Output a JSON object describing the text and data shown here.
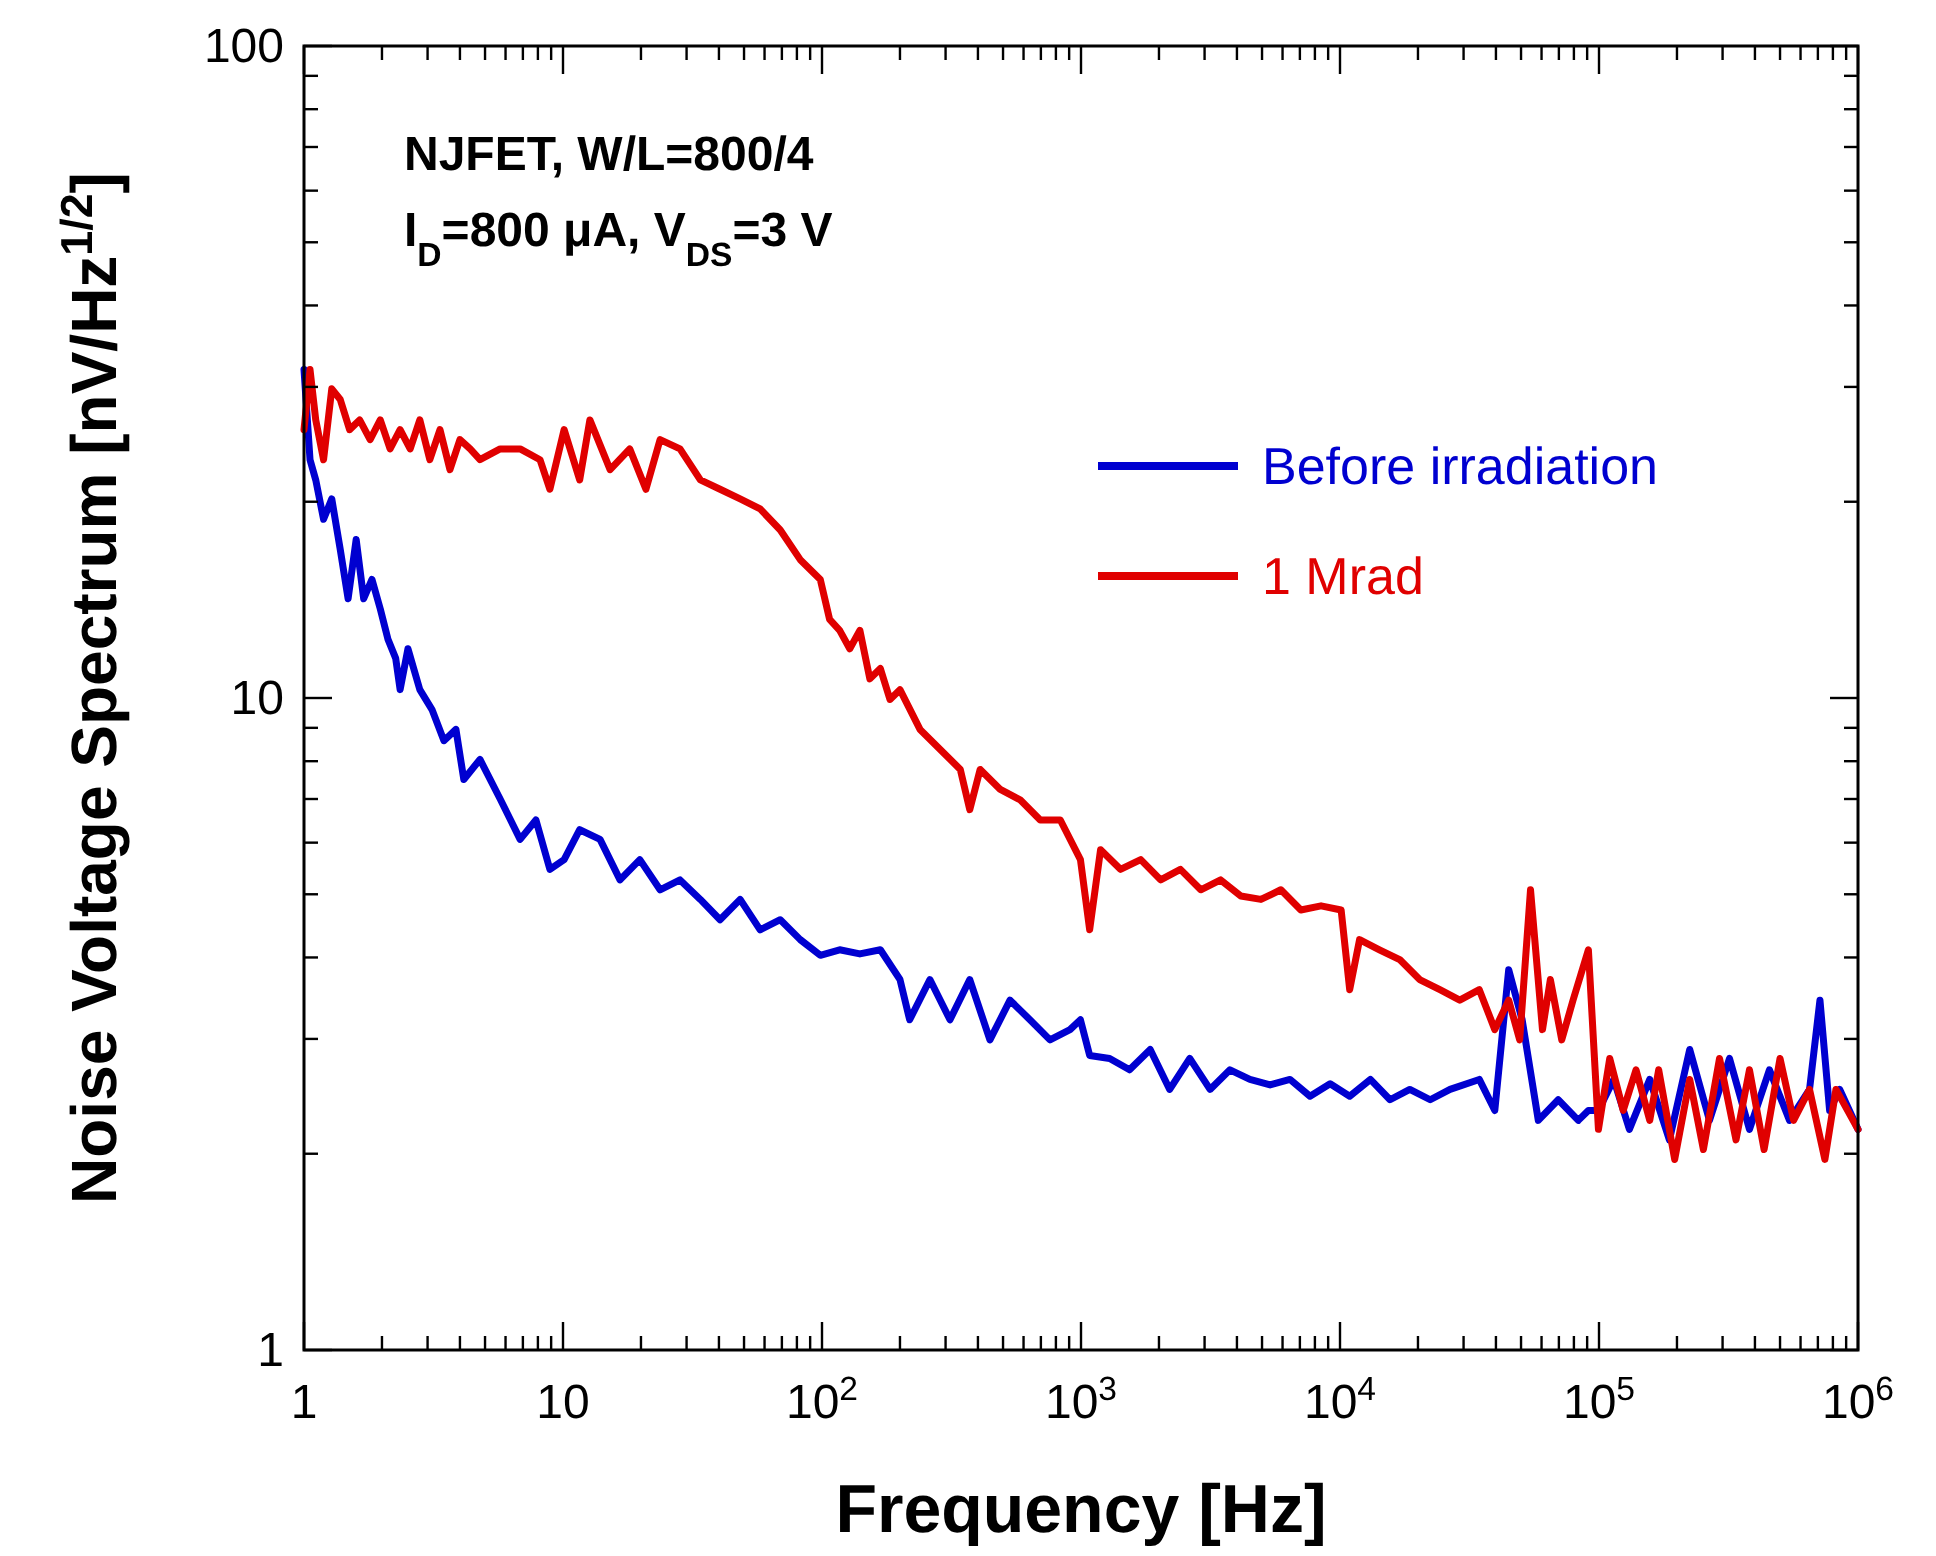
{
  "chart_data": {
    "type": "line",
    "xlabel": "Frequency [Hz]",
    "ylabel": "Noise Voltage Spectrum [nV/Hz$^{1/2}$]",
    "annotations": [
      "NJFET, W/L=800/4",
      "I$_{D}$=800 μA, V$_{DS}$=3 V"
    ],
    "log": "xy",
    "xlim": [
      1,
      1000000
    ],
    "ylim": [
      1,
      100
    ],
    "xticks": [
      1,
      {
        "value": 2,
        "label": null
      },
      {
        "value": 3,
        "label": null
      },
      {
        "value": 4,
        "label": null
      },
      {
        "value": 5,
        "label": null
      },
      {
        "value": 6,
        "label": null
      },
      {
        "value": 7,
        "label": null
      },
      {
        "value": 8,
        "label": null
      },
      {
        "value": 9,
        "label": null
      },
      10,
      {
        "value": 20,
        "label": null
      },
      {
        "value": 30,
        "label": null
      },
      {
        "value": 40,
        "label": null
      },
      {
        "value": 50,
        "label": null
      },
      {
        "value": 60,
        "label": null
      },
      {
        "value": 70,
        "label": null
      },
      {
        "value": 80,
        "label": null
      },
      {
        "value": 90,
        "label": null
      },
      {
        "value": 100,
        "label": "10$^{2}$"
      },
      {
        "value": 200,
        "label": null
      },
      {
        "value": 300,
        "label": null
      },
      {
        "value": 400,
        "label": null
      },
      {
        "value": 500,
        "label": null
      },
      {
        "value": 600,
        "label": null
      },
      {
        "value": 700,
        "label": null
      },
      {
        "value": 800,
        "label": null
      },
      {
        "value": 900,
        "label": null
      },
      {
        "value": 1000,
        "label": "10$^{3}$"
      },
      {
        "value": 2000,
        "label": null
      },
      {
        "value": 3000,
        "label": null
      },
      {
        "value": 4000,
        "label": null
      },
      {
        "value": 5000,
        "label": null
      },
      {
        "value": 6000,
        "label": null
      },
      {
        "value": 7000,
        "label": null
      },
      {
        "value": 8000,
        "label": null
      },
      {
        "value": 9000,
        "label": null
      },
      {
        "value": 10000,
        "label": "10$^{4}$"
      },
      {
        "value": 20000,
        "label": null
      },
      {
        "value": 30000,
        "label": null
      },
      {
        "value": 40000,
        "label": null
      },
      {
        "value": 50000,
        "label": null
      },
      {
        "value": 60000,
        "label": null
      },
      {
        "value": 70000,
        "label": null
      },
      {
        "value": 80000,
        "label": null
      },
      {
        "value": 90000,
        "label": null
      },
      {
        "value": 100000,
        "label": "10$^{5}$"
      },
      {
        "value": 200000,
        "label": null
      },
      {
        "value": 300000,
        "label": null
      },
      {
        "value": 400000,
        "label": null
      },
      {
        "value": 500000,
        "label": null
      },
      {
        "value": 600000,
        "label": null
      },
      {
        "value": 700000,
        "label": null
      },
      {
        "value": 800000,
        "label": null
      },
      {
        "value": 900000,
        "label": null
      },
      {
        "value": 1000000,
        "label": "10$^{6}$"
      }
    ],
    "yticks": [
      1,
      {
        "value": 2,
        "label": null
      },
      {
        "value": 3,
        "label": null
      },
      {
        "value": 4,
        "label": null
      },
      {
        "value": 5,
        "label": null
      },
      {
        "value": 6,
        "label": null
      },
      {
        "value": 7,
        "label": null
      },
      {
        "value": 8,
        "label": null
      },
      {
        "value": 9,
        "label": null
      },
      10,
      {
        "value": 20,
        "label": null
      },
      {
        "value": 30,
        "label": null
      },
      {
        "value": 40,
        "label": null
      },
      {
        "value": 50,
        "label": null
      },
      {
        "value": 60,
        "label": null
      },
      {
        "value": 70,
        "label": null
      },
      {
        "value": 80,
        "label": null
      },
      {
        "value": 90,
        "label": null
      },
      100
    ],
    "grid": false,
    "legend": "right",
    "line_style": "solid",
    "series": [
      {
        "name": "Before irradiation",
        "color": "#0000d0",
        "x": [
          1,
          1.055,
          1.11,
          1.19,
          1.28,
          1.38,
          1.48,
          1.59,
          1.7,
          1.83,
          1.97,
          2.11,
          2.26,
          2.35,
          2.52,
          2.8,
          3.12,
          3.47,
          3.86,
          4.14,
          4.78,
          5.72,
          6.83,
          7.86,
          8.9,
          10.1,
          11.6,
          13.9,
          16.6,
          19.8,
          23.7,
          28.3,
          33.9,
          40.4,
          48.3,
          57.7,
          69,
          82.4,
          98.5,
          117,
          140,
          168,
          200,
          218,
          261,
          312,
          372,
          445,
          532,
          635,
          759,
          907,
          995,
          1080,
          1290,
          1540,
          1850,
          2200,
          2630,
          3150,
          3760,
          4490,
          5370,
          6410,
          7660,
          9160,
          10900,
          13100,
          15600,
          18600,
          22300,
          26600,
          34500,
          39600,
          44800,
          50500,
          58300,
          69600,
          83200,
          91000,
          99500,
          114000,
          131000,
          157000,
          187000,
          224000,
          267000,
          319000,
          381000,
          455000,
          544000,
          650000,
          713000,
          777000,
          850000,
          1000000
        ],
        "values": [
          31.9,
          23.2,
          21.6,
          18.8,
          20.2,
          16.9,
          14.2,
          17.5,
          14.2,
          15.2,
          13.7,
          12.3,
          11.5,
          10.3,
          11.9,
          10.3,
          9.6,
          8.6,
          8.95,
          7.5,
          8.05,
          7.0,
          6.07,
          6.5,
          5.46,
          5.65,
          6.28,
          6.07,
          5.26,
          5.65,
          5.08,
          5.26,
          4.91,
          4.57,
          4.91,
          4.41,
          4.57,
          4.26,
          4.03,
          4.11,
          4.05,
          4.11,
          3.7,
          3.21,
          3.7,
          3.21,
          3.7,
          2.99,
          3.44,
          3.21,
          2.99,
          3.1,
          3.21,
          2.83,
          2.8,
          2.69,
          2.89,
          2.51,
          2.8,
          2.51,
          2.69,
          2.6,
          2.55,
          2.6,
          2.45,
          2.56,
          2.45,
          2.6,
          2.42,
          2.51,
          2.42,
          2.51,
          2.6,
          2.33,
          3.83,
          3.21,
          2.25,
          2.42,
          2.25,
          2.33,
          2.33,
          2.6,
          2.18,
          2.6,
          2.1,
          2.89,
          2.25,
          2.8,
          2.18,
          2.69,
          2.25,
          2.51,
          3.44,
          2.33,
          2.51,
          2.18
        ]
      },
      {
        "name": "1 Mrad",
        "color": "#e00000",
        "x": [
          1,
          1.055,
          1.11,
          1.19,
          1.28,
          1.38,
          1.5,
          1.64,
          1.8,
          1.97,
          2.15,
          2.35,
          2.57,
          2.8,
          3.06,
          3.35,
          3.66,
          4,
          4.38,
          4.78,
          5.72,
          6.83,
          8.15,
          8.9,
          10.1,
          11.6,
          12.7,
          15.2,
          18.1,
          20.9,
          23.7,
          28.3,
          33.9,
          40.4,
          48.3,
          57.7,
          69,
          82.4,
          98.5,
          107,
          117,
          128,
          140,
          153,
          168,
          183,
          200,
          239,
          286,
          342,
          372,
          408,
          488,
          582,
          696,
          832,
          995,
          1080,
          1190,
          1420,
          1700,
          2030,
          2420,
          2900,
          3460,
          4140,
          4950,
          5910,
          7060,
          8450,
          10100,
          10900,
          11900,
          14200,
          17000,
          20300,
          24300,
          29000,
          34500,
          39600,
          44800,
          49400,
          54400,
          60500,
          64900,
          71800,
          79400,
          91000,
          99500,
          110000,
          124000,
          139000,
          157000,
          170000,
          196000,
          224000,
          253000,
          292000,
          338000,
          381000,
          434000,
          500000,
          564000,
          650000,
          745000,
          822000,
          1000000
        ],
        "values": [
          25.8,
          31.9,
          26.7,
          23.2,
          29.8,
          28.7,
          25.8,
          26.7,
          24.9,
          26.7,
          24.1,
          25.8,
          24.1,
          26.7,
          23.2,
          25.8,
          22.4,
          24.9,
          24.1,
          23.2,
          24.1,
          24.1,
          23.2,
          20.9,
          25.8,
          21.6,
          26.7,
          22.4,
          24.1,
          20.9,
          24.9,
          24.1,
          21.6,
          20.9,
          20.2,
          19.5,
          18.1,
          16.3,
          15.2,
          13.2,
          12.7,
          11.9,
          12.7,
          10.7,
          11.1,
          9.95,
          10.3,
          8.95,
          8.34,
          7.77,
          6.74,
          7.77,
          7.24,
          6.98,
          6.5,
          6.5,
          5.65,
          4.41,
          5.85,
          5.46,
          5.65,
          5.26,
          5.46,
          5.08,
          5.26,
          4.97,
          4.91,
          5.08,
          4.73,
          4.8,
          4.73,
          3.57,
          4.26,
          4.11,
          3.97,
          3.7,
          3.57,
          3.44,
          3.57,
          3.1,
          3.44,
          2.99,
          5.08,
          3.1,
          3.7,
          2.99,
          3.44,
          4.11,
          2.18,
          2.8,
          2.33,
          2.69,
          2.25,
          2.69,
          1.96,
          2.6,
          2.03,
          2.8,
          2.1,
          2.69,
          2.03,
          2.8,
          2.25,
          2.51,
          1.96,
          2.51,
          2.18
        ]
      }
    ]
  }
}
